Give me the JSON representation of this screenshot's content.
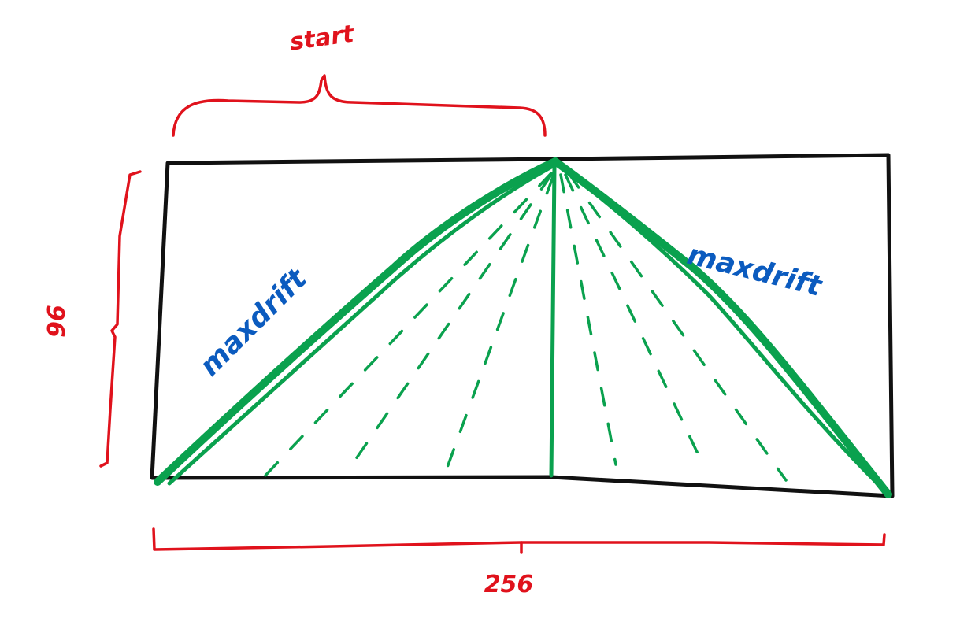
{
  "labels": {
    "start": "start",
    "height": "96",
    "width": "256",
    "left_slope": "maxdrift",
    "right_slope": "maxdrift"
  },
  "colors": {
    "box": "#111111",
    "dimension": "#e0121c",
    "drift": "#0aa14e",
    "annotation": "#0b5bbf"
  }
}
